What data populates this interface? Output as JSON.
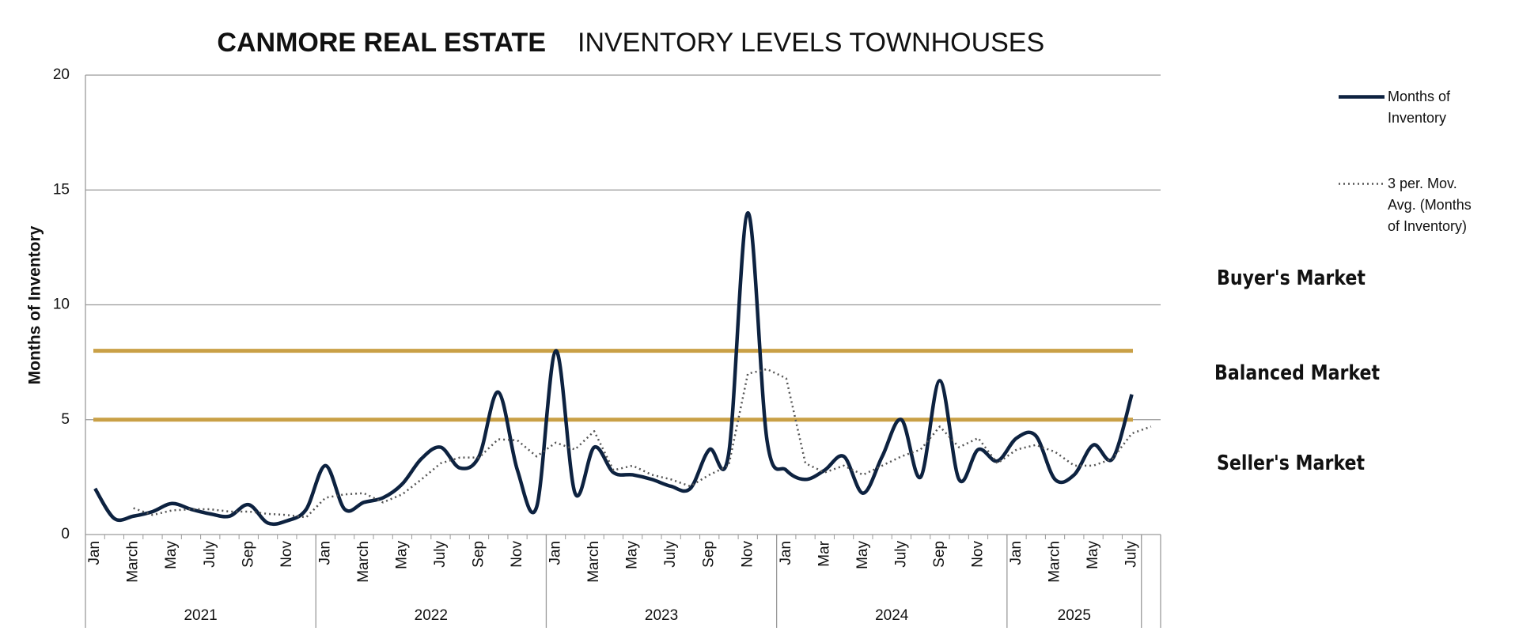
{
  "chart_data": {
    "type": "line",
    "title": "CANMORE REAL ESTATE",
    "subtitle": "INVENTORY LEVELS TOWNHOUSES",
    "y_label": "Months of Inventory",
    "categories": [
      "Jan",
      null,
      "March",
      null,
      "May",
      null,
      "July",
      null,
      "Sep",
      null,
      "Nov",
      null,
      "Jan",
      null,
      "March",
      null,
      "May",
      null,
      "July",
      null,
      "Sep",
      null,
      "Nov",
      null,
      "Jan",
      null,
      "March",
      null,
      "May",
      null,
      "July",
      null,
      "Sep",
      null,
      "Nov",
      null,
      "Jan",
      null,
      "Mar",
      null,
      "May",
      null,
      "July",
      null,
      "Sep",
      null,
      "Nov",
      null,
      "Jan",
      null,
      "March",
      null,
      "May",
      null,
      "July",
      null
    ],
    "x_groups": [
      "2021",
      "2022",
      "2023",
      "2024",
      "2025"
    ],
    "series": [
      {
        "name": "Months of Inventory",
        "color": "#0d2240",
        "style": "solid",
        "smooth": true,
        "values": [
          2.0,
          0.7,
          0.8,
          1.0,
          1.35,
          1.1,
          0.9,
          0.8,
          1.3,
          0.5,
          0.6,
          1.1,
          3.0,
          1.1,
          1.4,
          1.6,
          2.2,
          3.3,
          3.8,
          2.9,
          3.4,
          6.2,
          2.8,
          1.2,
          8.0,
          1.8,
          3.8,
          2.7,
          2.6,
          2.4,
          2.1,
          2.0,
          3.7,
          3.5,
          14.0,
          4.1,
          2.8,
          2.4,
          2.8,
          3.4,
          1.8,
          3.4,
          5.0,
          2.5,
          6.7,
          2.4,
          3.7,
          3.2,
          4.2,
          4.3,
          2.4,
          2.6,
          3.9,
          3.3,
          6.1,
          null
        ]
      },
      {
        "name": "3 per. Mov. Avg. (Months of Inventory)",
        "color": "#555555",
        "style": "dotted",
        "smooth": false,
        "values": [
          null,
          null,
          1.15,
          0.85,
          1.05,
          1.1,
          1.1,
          1.0,
          1.0,
          0.9,
          0.85,
          0.75,
          1.6,
          1.75,
          1.8,
          1.4,
          1.75,
          2.4,
          3.1,
          3.35,
          3.35,
          4.15,
          4.1,
          3.4,
          4.0,
          3.7,
          4.5,
          2.8,
          3.0,
          2.6,
          2.4,
          2.1,
          2.6,
          3.0,
          7.0,
          7.2,
          6.8,
          3.1,
          2.7,
          3.0,
          2.6,
          3.0,
          3.4,
          3.7,
          4.7,
          3.8,
          4.2,
          3.1,
          3.7,
          3.9,
          3.6,
          3.0,
          3.0,
          3.3,
          4.4,
          4.7
        ]
      }
    ],
    "reference_lines": [
      {
        "value": 8,
        "color": "#c9a046"
      },
      {
        "value": 5,
        "color": "#c9a046"
      }
    ],
    "annotations": [
      "Buyer's Market",
      "Balanced Market",
      "Seller's Market"
    ],
    "ylim": [
      0,
      20
    ],
    "yticks": [
      0,
      5,
      10,
      15,
      20
    ],
    "grid": true,
    "legend": "right"
  }
}
